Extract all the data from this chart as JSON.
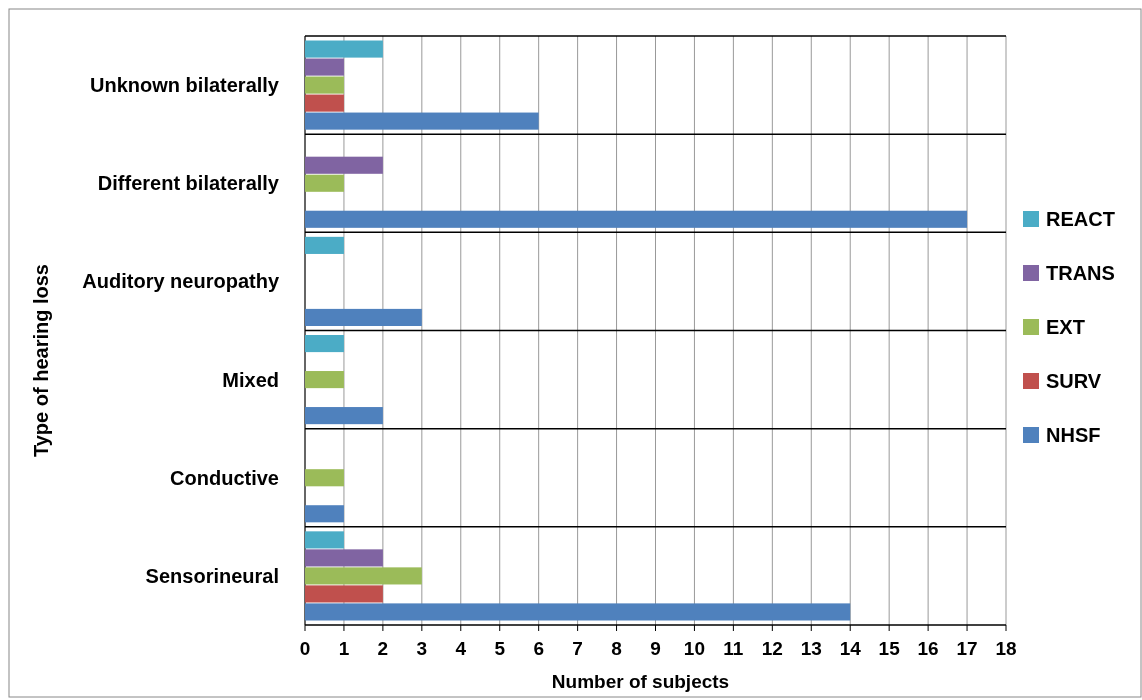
{
  "chart_data": {
    "type": "bar",
    "orientation": "horizontal",
    "xlabel": "Number of subjects",
    "ylabel": "Type of hearing loss",
    "categories": [
      "Unknown bilaterally",
      "Different bilaterally",
      "Auditory neuropathy",
      "Mixed",
      "Conductive",
      "Sensorineural"
    ],
    "series": [
      {
        "name": "REACT",
        "color": "#4bacc6",
        "values": [
          2,
          0,
          1,
          1,
          0,
          1
        ]
      },
      {
        "name": "TRANS",
        "color": "#8064a2",
        "values": [
          1,
          2,
          0,
          0,
          0,
          2
        ]
      },
      {
        "name": "EXT",
        "color": "#9bbb59",
        "values": [
          1,
          1,
          0,
          1,
          1,
          3
        ]
      },
      {
        "name": "SURV",
        "color": "#c0504d",
        "values": [
          1,
          0,
          0,
          0,
          0,
          2
        ]
      },
      {
        "name": "NHSF",
        "color": "#4f81bd",
        "values": [
          6,
          17,
          3,
          2,
          1,
          14
        ]
      }
    ],
    "xlim": [
      0,
      18
    ],
    "xticks": [
      0,
      1,
      2,
      3,
      4,
      5,
      6,
      7,
      8,
      9,
      10,
      11,
      12,
      13,
      14,
      15,
      16,
      17,
      18
    ],
    "grid": "x",
    "legend": "right"
  }
}
